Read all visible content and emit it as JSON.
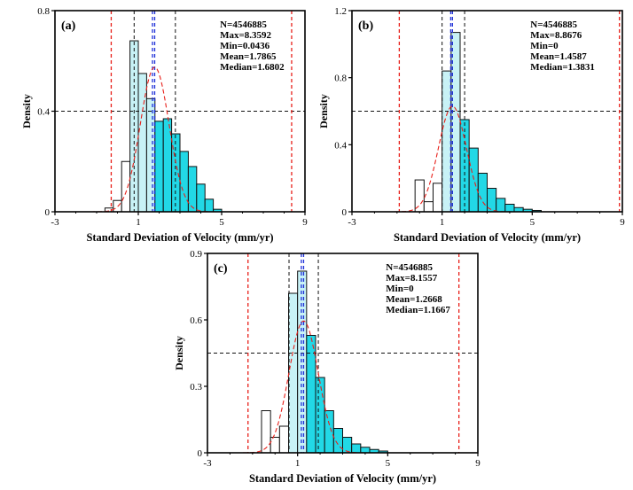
{
  "figure": {
    "xlabel": "Standard Deviation of Velocity (mm/yr)",
    "ylabel": "Density",
    "colors": {
      "bar_fill": "#22d8e6",
      "bar_fill_light": "#c8f2f6",
      "bar_fill_white": "#ffffff",
      "bar_stroke": "#111111",
      "fit_curve": "#e8201a",
      "limit_line": "#e8201a",
      "mean_line": "#1e2fd8",
      "median_line": "#1e2fd8",
      "std_line": "#111111",
      "ref_line": "#111111"
    }
  },
  "chart_data": [
    {
      "panel": "(a)",
      "type": "bar",
      "title": "",
      "xlabel": "Standard Deviation of Velocity (mm/yr)",
      "ylabel": "Density",
      "xlim": [
        -3,
        9
      ],
      "ylim": [
        0,
        0.8
      ],
      "xticks": [
        "-3",
        "1",
        "5",
        "9"
      ],
      "yticks": [
        "0",
        "0.4",
        "0.8"
      ],
      "bin_width": 0.4,
      "bins": [
        {
          "x0": -0.6,
          "value": 0.015,
          "tone": "white"
        },
        {
          "x0": -0.2,
          "value": 0.045,
          "tone": "white"
        },
        {
          "x0": 0.2,
          "value": 0.2,
          "tone": "white"
        },
        {
          "x0": 0.6,
          "value": 0.68,
          "tone": "light"
        },
        {
          "x0": 1.0,
          "value": 0.55,
          "tone": "light"
        },
        {
          "x0": 1.4,
          "value": 0.45,
          "tone": "light"
        },
        {
          "x0": 1.8,
          "value": 0.36,
          "tone": "cyan"
        },
        {
          "x0": 2.2,
          "value": 0.37,
          "tone": "cyan"
        },
        {
          "x0": 2.6,
          "value": 0.31,
          "tone": "cyan"
        },
        {
          "x0": 3.0,
          "value": 0.24,
          "tone": "cyan"
        },
        {
          "x0": 3.4,
          "value": 0.18,
          "tone": "cyan"
        },
        {
          "x0": 3.8,
          "value": 0.11,
          "tone": "cyan"
        },
        {
          "x0": 4.2,
          "value": 0.05,
          "tone": "cyan"
        },
        {
          "x0": 4.6,
          "value": 0.01,
          "tone": "cyan"
        }
      ],
      "fit": {
        "mean": 1.7865,
        "sd": 0.69,
        "peak": 0.575
      },
      "vlines": [
        {
          "x": -0.3,
          "kind": "limit"
        },
        {
          "x": 8.36,
          "kind": "limit"
        },
        {
          "x": 0.8,
          "kind": "std"
        },
        {
          "x": 2.78,
          "kind": "std"
        },
        {
          "x": 1.6802,
          "kind": "median"
        },
        {
          "x": 1.7865,
          "kind": "mean"
        }
      ],
      "hline": 0.4,
      "stats": [
        "N=4546885",
        "Max=8.3592",
        "Min=0.0436",
        "Mean=1.7865",
        "Median=1.6802"
      ]
    },
    {
      "panel": "(b)",
      "type": "bar",
      "title": "",
      "xlabel": "Standard Deviation of Velocity (mm/yr)",
      "ylabel": "Density",
      "xlim": [
        -3,
        9
      ],
      "ylim": [
        0,
        1.2
      ],
      "xticks": [
        "-3",
        "1",
        "5",
        "9"
      ],
      "yticks": [
        "0",
        "0.4",
        "0.8",
        "1.2"
      ],
      "bin_width": 0.4,
      "bins": [
        {
          "x0": -0.2,
          "value": 0.19,
          "tone": "white"
        },
        {
          "x0": 0.2,
          "value": 0.06,
          "tone": "white"
        },
        {
          "x0": 0.6,
          "value": 0.17,
          "tone": "white"
        },
        {
          "x0": 1.0,
          "value": 0.84,
          "tone": "light"
        },
        {
          "x0": 1.4,
          "value": 1.07,
          "tone": "light"
        },
        {
          "x0": 1.8,
          "value": 0.55,
          "tone": "cyan"
        },
        {
          "x0": 2.2,
          "value": 0.38,
          "tone": "cyan"
        },
        {
          "x0": 2.6,
          "value": 0.23,
          "tone": "cyan"
        },
        {
          "x0": 3.0,
          "value": 0.14,
          "tone": "cyan"
        },
        {
          "x0": 3.4,
          "value": 0.08,
          "tone": "cyan"
        },
        {
          "x0": 3.8,
          "value": 0.045,
          "tone": "cyan"
        },
        {
          "x0": 4.2,
          "value": 0.025,
          "tone": "cyan"
        },
        {
          "x0": 4.6,
          "value": 0.015,
          "tone": "cyan"
        },
        {
          "x0": 5.0,
          "value": 0.008,
          "tone": "cyan"
        }
      ],
      "fit": {
        "mean": 1.4587,
        "sd": 0.62,
        "peak": 0.63
      },
      "vlines": [
        {
          "x": -0.9,
          "kind": "limit"
        },
        {
          "x": 8.87,
          "kind": "limit"
        },
        {
          "x": 1.0,
          "kind": "std"
        },
        {
          "x": 2.0,
          "kind": "std"
        },
        {
          "x": 1.3831,
          "kind": "median"
        },
        {
          "x": 1.4587,
          "kind": "mean"
        }
      ],
      "hline": 0.6,
      "stats": [
        "N=4546885",
        "Max=8.8676",
        "Min=0",
        "Mean=1.4587",
        "Median=1.3831"
      ]
    },
    {
      "panel": "(c)",
      "type": "bar",
      "title": "",
      "xlabel": "Standard Deviation of Velocity (mm/yr)",
      "ylabel": "Density",
      "xlim": [
        -3,
        9
      ],
      "ylim": [
        0,
        0.9
      ],
      "xticks": [
        "-3",
        "1",
        "5",
        "9"
      ],
      "yticks": [
        "0",
        "0.3",
        "0.6",
        "0.9"
      ],
      "bin_width": 0.4,
      "bins": [
        {
          "x0": -0.6,
          "value": 0.19,
          "tone": "white"
        },
        {
          "x0": -0.2,
          "value": 0.07,
          "tone": "white"
        },
        {
          "x0": 0.2,
          "value": 0.12,
          "tone": "white"
        },
        {
          "x0": 0.6,
          "value": 0.72,
          "tone": "light"
        },
        {
          "x0": 1.0,
          "value": 0.82,
          "tone": "light"
        },
        {
          "x0": 1.4,
          "value": 0.53,
          "tone": "cyan"
        },
        {
          "x0": 1.8,
          "value": 0.34,
          "tone": "cyan"
        },
        {
          "x0": 2.2,
          "value": 0.19,
          "tone": "cyan"
        },
        {
          "x0": 2.6,
          "value": 0.11,
          "tone": "cyan"
        },
        {
          "x0": 3.0,
          "value": 0.07,
          "tone": "cyan"
        },
        {
          "x0": 3.4,
          "value": 0.04,
          "tone": "cyan"
        },
        {
          "x0": 3.8,
          "value": 0.025,
          "tone": "cyan"
        },
        {
          "x0": 4.2,
          "value": 0.015,
          "tone": "cyan"
        },
        {
          "x0": 4.6,
          "value": 0.008,
          "tone": "cyan"
        }
      ],
      "fit": {
        "mean": 1.2668,
        "sd": 0.65,
        "peak": 0.595
      },
      "vlines": [
        {
          "x": -1.2,
          "kind": "limit"
        },
        {
          "x": 8.16,
          "kind": "limit"
        },
        {
          "x": 0.62,
          "kind": "std"
        },
        {
          "x": 1.92,
          "kind": "std"
        },
        {
          "x": 1.1667,
          "kind": "median"
        },
        {
          "x": 1.2668,
          "kind": "mean"
        }
      ],
      "hline": 0.45,
      "stats": [
        "N=4546885",
        "Max=8.1557",
        "Min=0",
        "Mean=1.2668",
        "Median=1.1667"
      ]
    }
  ]
}
